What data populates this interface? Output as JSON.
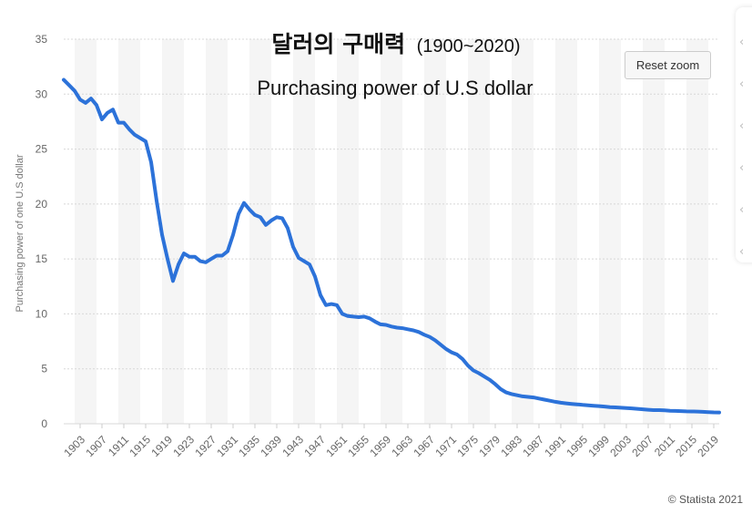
{
  "toolbar": {
    "reset_zoom_label": "Reset zoom",
    "side_icons": [
      "share-icon",
      "bookmark-icon",
      "info-icon",
      "settings-icon",
      "print-icon",
      "download-icon"
    ]
  },
  "credit": "© Statista 2021",
  "colors": {
    "line": "#2c72d9",
    "band": "#f5f5f5",
    "grid": "#d8d8d8"
  },
  "chart_data": {
    "type": "line",
    "title": "달러의 구매력",
    "title_years": "(1900~2020)",
    "subtitle": "Purchasing power of U.S dollar",
    "xlabel": "",
    "ylabel": "Purchasing power of one U.S dollar",
    "ylim": [
      0,
      35
    ],
    "xlim": [
      1900,
      2020
    ],
    "yticks": [
      0,
      5,
      10,
      15,
      20,
      25,
      30,
      35
    ],
    "xticks": [
      1903,
      1907,
      1911,
      1915,
      1919,
      1923,
      1927,
      1931,
      1935,
      1939,
      1943,
      1947,
      1951,
      1955,
      1959,
      1963,
      1967,
      1971,
      1975,
      1979,
      1983,
      1987,
      1991,
      1995,
      1999,
      2003,
      2007,
      2011,
      2015,
      2019
    ],
    "grid": true,
    "series": [
      {
        "name": "",
        "x": [
          1900,
          1901,
          1902,
          1903,
          1904,
          1905,
          1906,
          1907,
          1908,
          1909,
          1910,
          1911,
          1912,
          1913,
          1914,
          1915,
          1916,
          1917,
          1918,
          1919,
          1920,
          1921,
          1922,
          1923,
          1924,
          1925,
          1926,
          1927,
          1928,
          1929,
          1930,
          1931,
          1932,
          1933,
          1934,
          1935,
          1936,
          1937,
          1938,
          1939,
          1940,
          1941,
          1942,
          1943,
          1944,
          1945,
          1946,
          1947,
          1948,
          1949,
          1950,
          1951,
          1952,
          1953,
          1954,
          1955,
          1956,
          1957,
          1958,
          1959,
          1960,
          1961,
          1962,
          1963,
          1964,
          1965,
          1966,
          1967,
          1968,
          1969,
          1970,
          1971,
          1972,
          1973,
          1974,
          1975,
          1976,
          1977,
          1978,
          1979,
          1980,
          1981,
          1982,
          1983,
          1984,
          1985,
          1986,
          1987,
          1988,
          1989,
          1990,
          1991,
          1992,
          1993,
          1994,
          1995,
          1996,
          1997,
          1998,
          1999,
          2000,
          2001,
          2002,
          2003,
          2004,
          2005,
          2006,
          2007,
          2008,
          2009,
          2010,
          2011,
          2012,
          2013,
          2014,
          2015,
          2016,
          2017,
          2018,
          2019,
          2020
        ],
        "values": [
          31.3,
          30.8,
          30.3,
          29.5,
          29.2,
          29.6,
          29.0,
          27.7,
          28.3,
          28.6,
          27.4,
          27.4,
          26.8,
          26.3,
          26.0,
          25.7,
          23.8,
          20.3,
          17.2,
          15.0,
          13.0,
          14.5,
          15.5,
          15.2,
          15.2,
          14.8,
          14.7,
          15.0,
          15.3,
          15.3,
          15.7,
          17.2,
          19.1,
          20.1,
          19.5,
          19.0,
          18.8,
          18.1,
          18.5,
          18.8,
          18.7,
          17.8,
          16.1,
          15.1,
          14.8,
          14.5,
          13.4,
          11.7,
          10.8,
          10.9,
          10.8,
          10.0,
          9.8,
          9.75,
          9.7,
          9.75,
          9.6,
          9.3,
          9.05,
          9.0,
          8.85,
          8.75,
          8.7,
          8.6,
          8.5,
          8.35,
          8.1,
          7.9,
          7.6,
          7.2,
          6.8,
          6.5,
          6.3,
          5.9,
          5.3,
          4.85,
          4.6,
          4.3,
          4.0,
          3.6,
          3.15,
          2.85,
          2.7,
          2.6,
          2.5,
          2.45,
          2.4,
          2.3,
          2.2,
          2.1,
          2.0,
          1.92,
          1.86,
          1.81,
          1.77,
          1.72,
          1.68,
          1.64,
          1.61,
          1.57,
          1.52,
          1.49,
          1.46,
          1.43,
          1.4,
          1.36,
          1.32,
          1.28,
          1.24,
          1.24,
          1.22,
          1.19,
          1.17,
          1.15,
          1.13,
          1.12,
          1.11,
          1.09,
          1.06,
          1.04,
          1.03
        ]
      }
    ]
  }
}
